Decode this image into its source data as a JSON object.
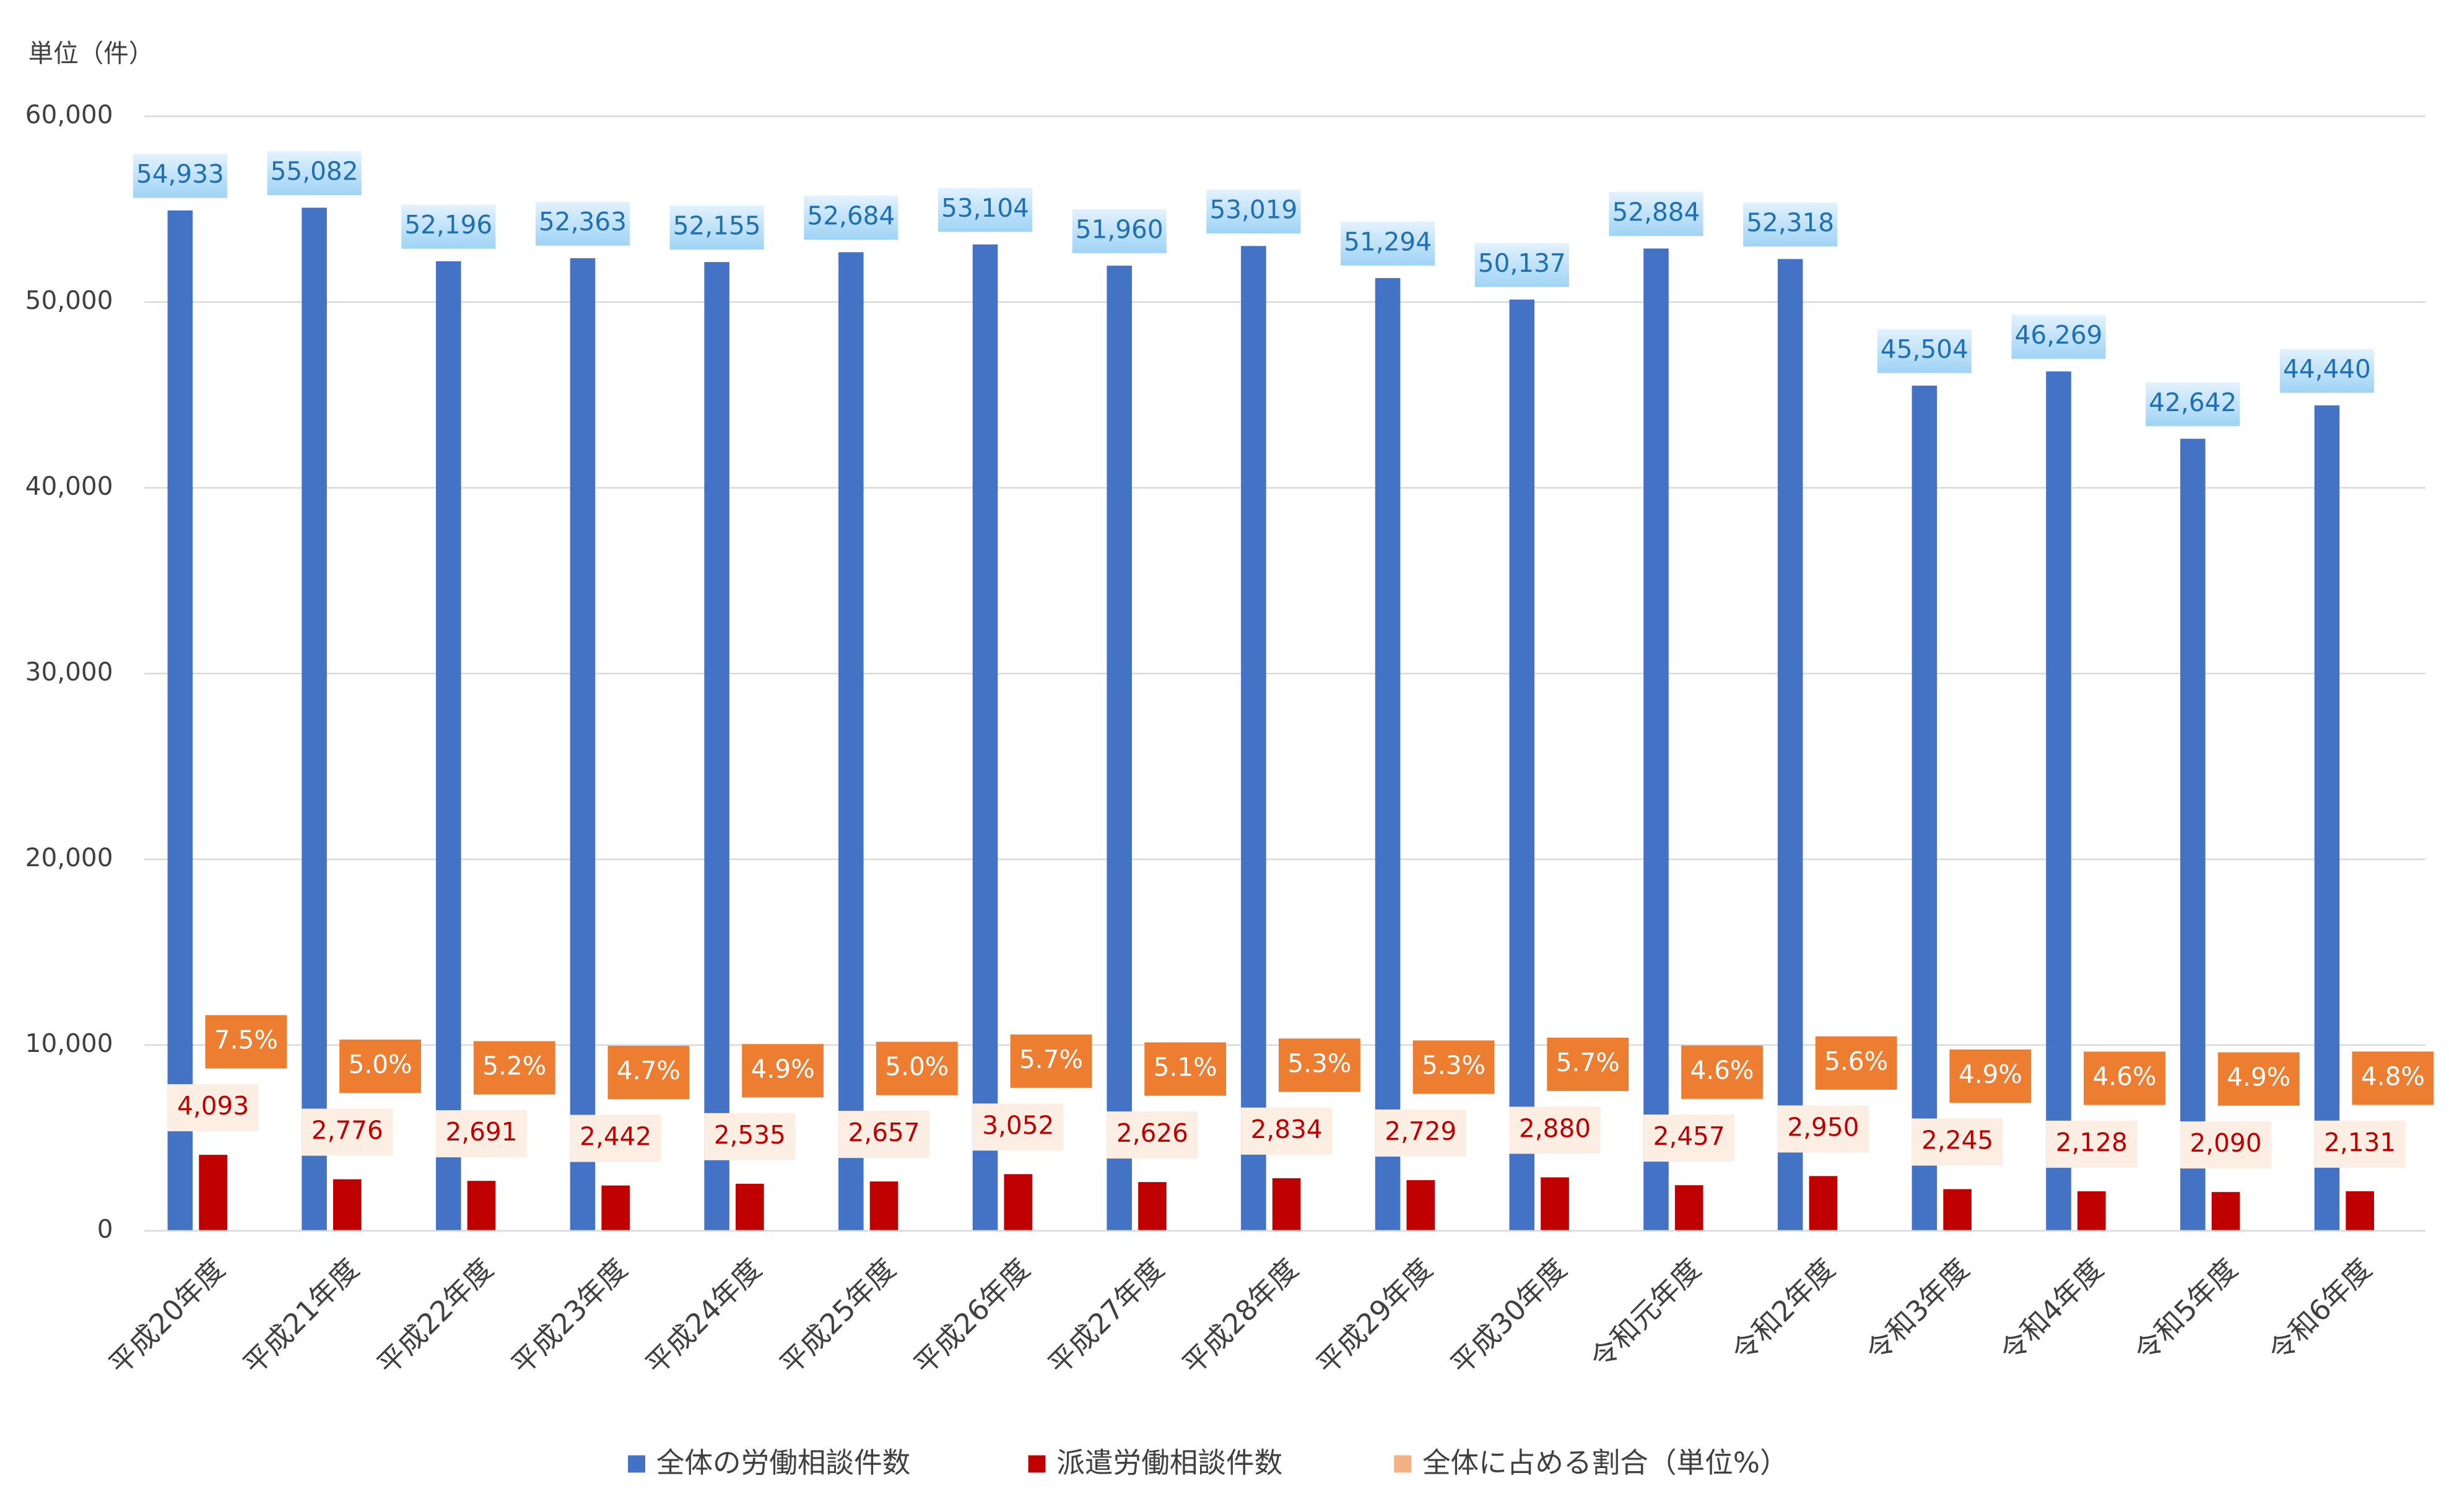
{
  "chart_data": {
    "type": "bar",
    "title": "単位（件）",
    "categories": [
      "平成20年度",
      "平成21年度",
      "平成22年度",
      "平成23年度",
      "平成24年度",
      "平成25年度",
      "平成26年度",
      "平成27年度",
      "平成28年度",
      "平成29年度",
      "平成30年度",
      "令和元年度",
      "令和2年度",
      "令和3年度",
      "令和4年度",
      "令和5年度",
      "令和6年度"
    ],
    "series": [
      {
        "name": "全体の労働相談件数",
        "color": "#4472c4",
        "values": [
          54933,
          55082,
          52196,
          52363,
          52155,
          52684,
          53104,
          51960,
          53019,
          51294,
          50137,
          52884,
          52318,
          45504,
          46269,
          42642,
          44440
        ],
        "value_labels": [
          "54,933",
          "55,082",
          "52,196",
          "52,363",
          "52,155",
          "52,684",
          "53,104",
          "51,960",
          "53,019",
          "51,294",
          "50,137",
          "52,884",
          "52,318",
          "45,504",
          "46,269",
          "42,642",
          "44,440"
        ]
      },
      {
        "name": "派遣労働相談件数",
        "color": "#c00000",
        "values": [
          4093,
          2776,
          2691,
          2442,
          2535,
          2657,
          3052,
          2626,
          2834,
          2729,
          2880,
          2457,
          2950,
          2245,
          2128,
          2090,
          2131
        ],
        "value_labels": [
          "4,093",
          "2,776",
          "2,691",
          "2,442",
          "2,535",
          "2,657",
          "3,052",
          "2,626",
          "2,834",
          "2,729",
          "2,880",
          "2,457",
          "2,950",
          "2,245",
          "2,128",
          "2,090",
          "2,131"
        ]
      },
      {
        "name": "全体に占める割合（単位%）",
        "color": "#f4b183",
        "values": [
          7.5,
          5.0,
          5.2,
          4.7,
          4.9,
          5.0,
          5.7,
          5.1,
          5.3,
          5.3,
          5.7,
          4.6,
          5.6,
          4.9,
          4.6,
          4.9,
          4.8
        ],
        "value_labels": [
          "7.5%",
          "5.0%",
          "5.2%",
          "4.7%",
          "4.9%",
          "5.0%",
          "5.7%",
          "5.1%",
          "5.3%",
          "5.3%",
          "5.7%",
          "4.6%",
          "5.6%",
          "4.9%",
          "4.6%",
          "4.9%",
          "4.8%"
        ]
      }
    ],
    "ylim": [
      0,
      60000
    ],
    "yticks": [
      0,
      {
        "value": 10000,
        "label": "10,000"
      },
      {
        "value": 20000,
        "label": "20,000"
      },
      {
        "value": 30000,
        "label": "30,000"
      },
      {
        "value": 40000,
        "label": "40,000"
      },
      {
        "value": 50000,
        "label": "50,000"
      },
      {
        "value": 60000,
        "label": "60,000"
      }
    ],
    "grid": true,
    "legend": "bottom"
  }
}
